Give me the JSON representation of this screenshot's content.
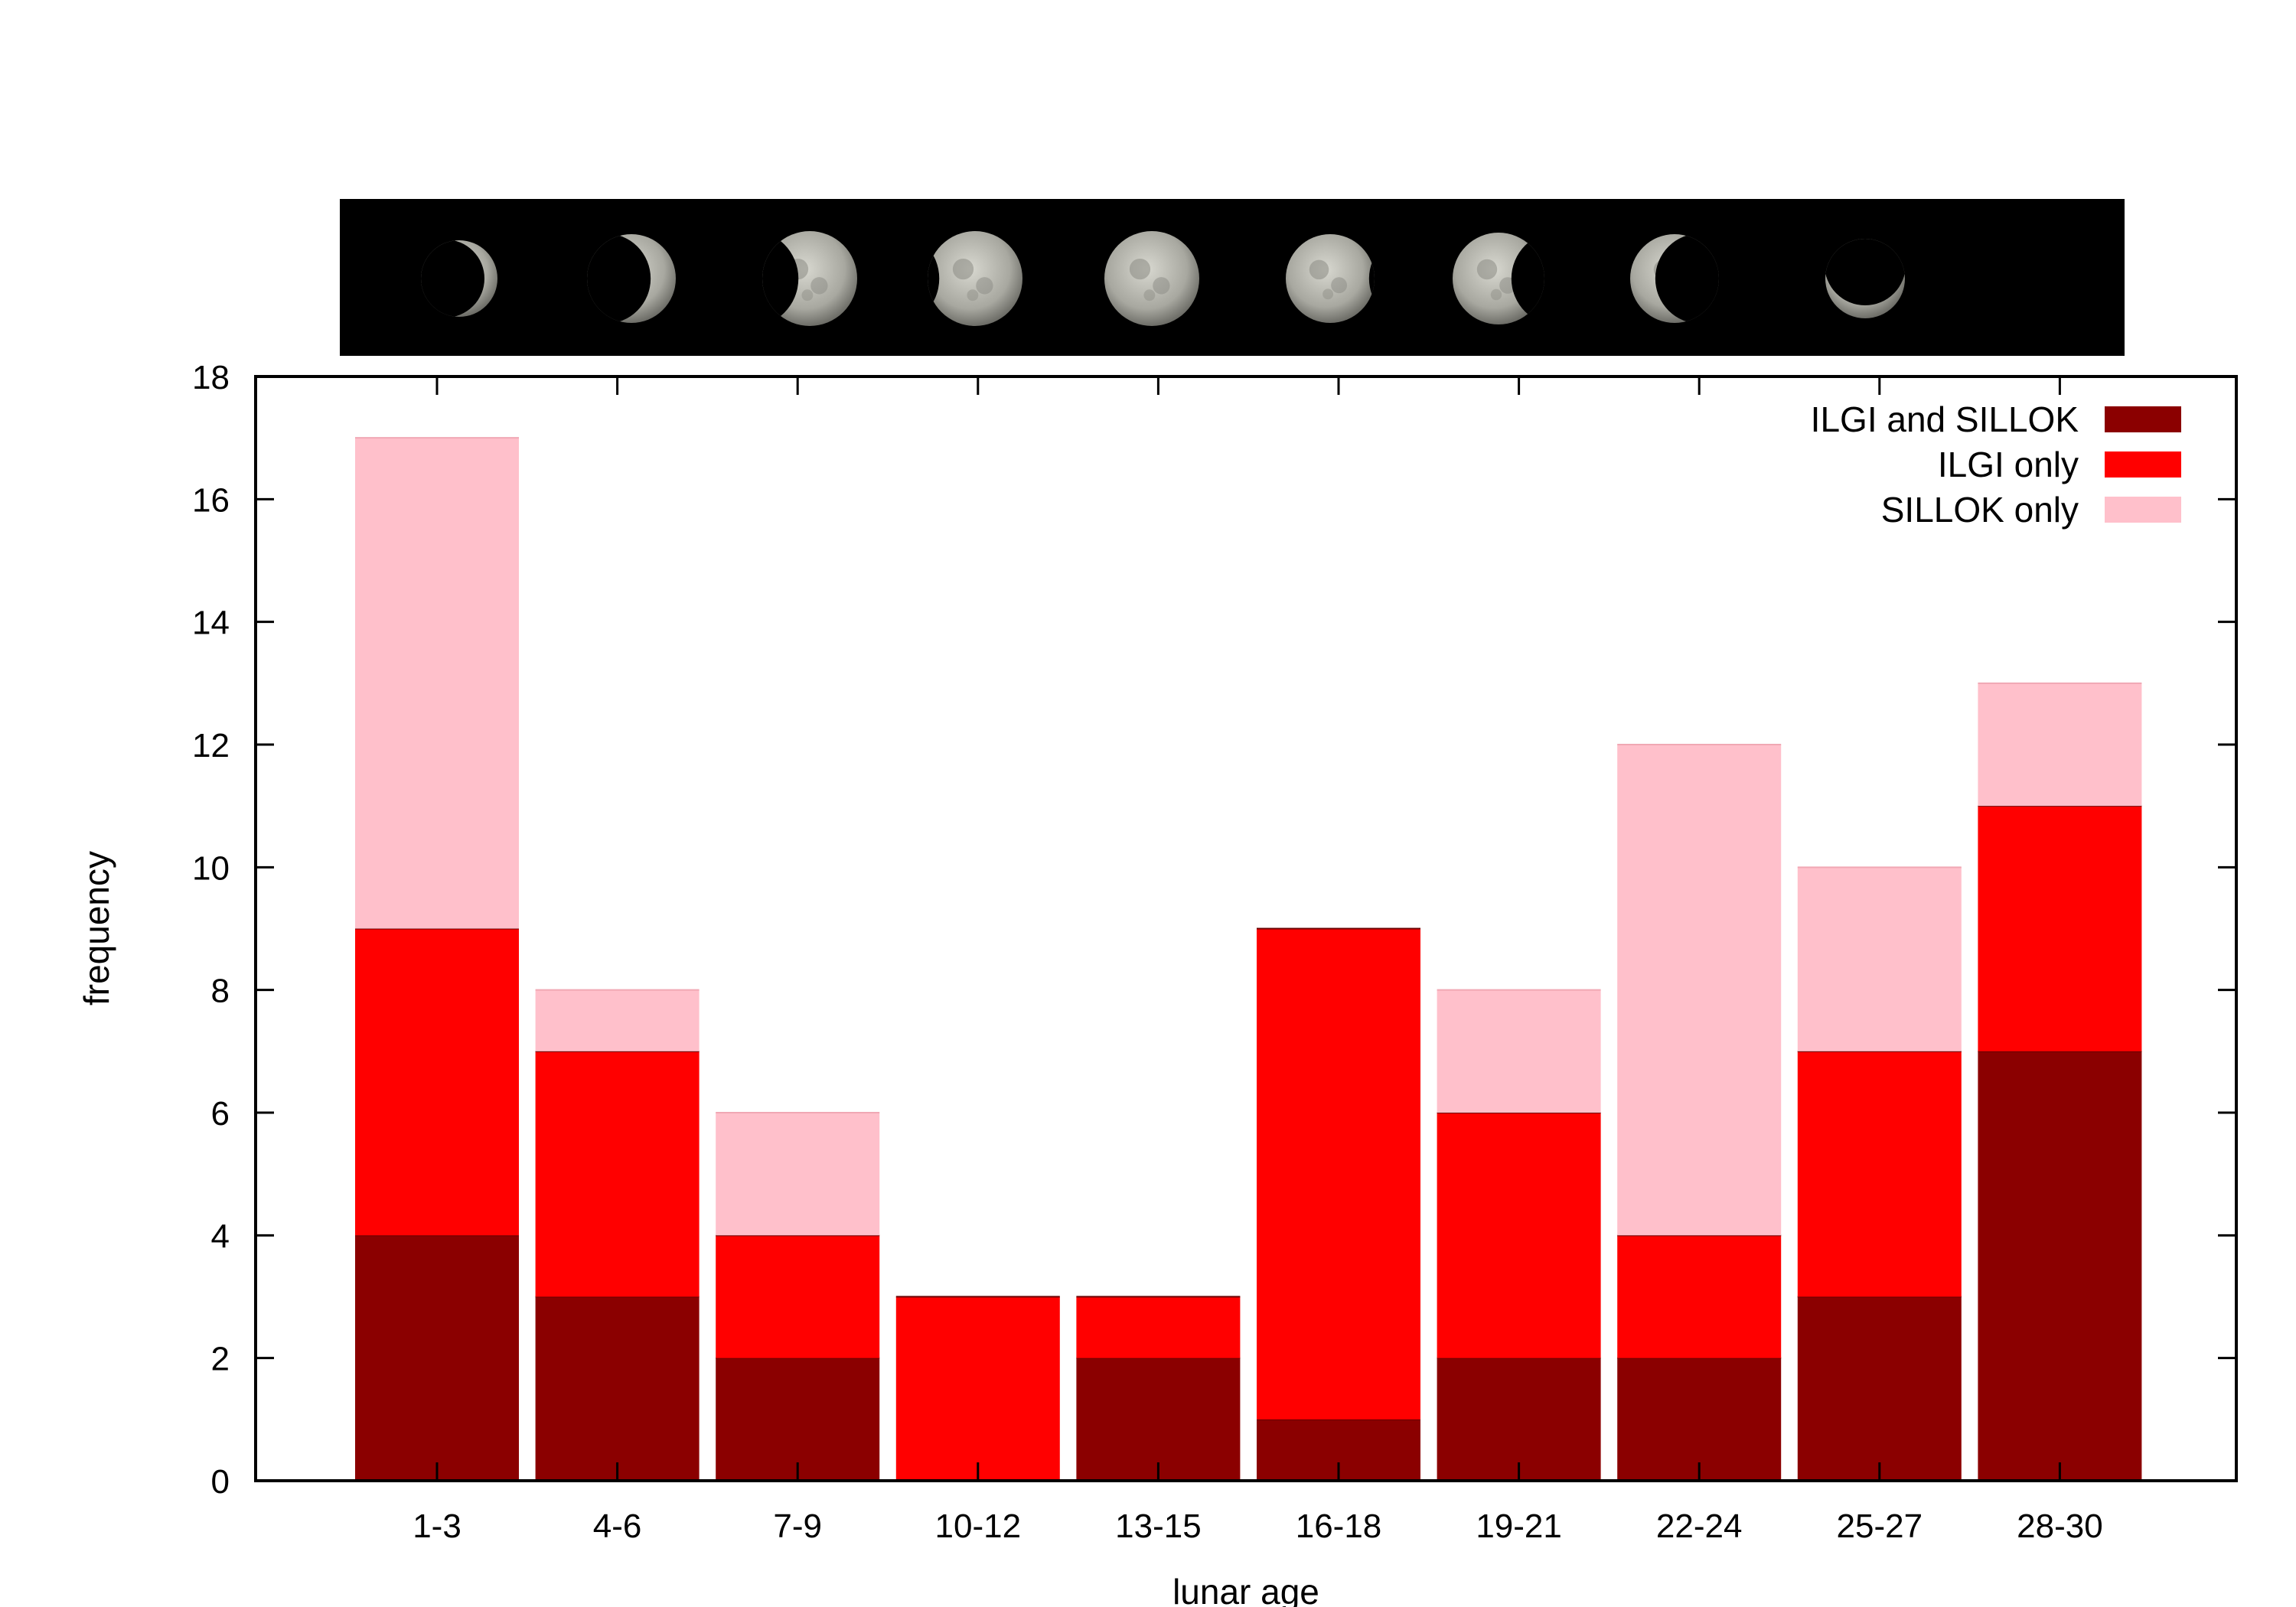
{
  "chart_data": {
    "type": "bar",
    "stacked": true,
    "title": "",
    "xlabel": "lunar age",
    "ylabel": "frequency",
    "ylim": [
      0,
      18
    ],
    "yticks": [
      0,
      2,
      4,
      6,
      8,
      10,
      12,
      14,
      16,
      18
    ],
    "categories": [
      "1-3",
      "4-6",
      "7-9",
      "10-12",
      "13-15",
      "16-18",
      "19-21",
      "22-24",
      "25-27",
      "28-30"
    ],
    "series": [
      {
        "name": "ILGI and SILLOK",
        "color": "#8b0000",
        "values": [
          4,
          3,
          2,
          0,
          2,
          1,
          2,
          2,
          3,
          7
        ]
      },
      {
        "name": "ILGI only",
        "color": "#ff0000",
        "values": [
          5,
          4,
          2,
          3,
          1,
          8,
          4,
          2,
          4,
          4
        ]
      },
      {
        "name": "SILLOK only",
        "color": "#ffc0cb",
        "values": [
          8,
          1,
          2,
          0,
          0,
          0,
          2,
          8,
          3,
          2
        ]
      }
    ],
    "legend_position": "top-right",
    "grid": false,
    "header_image": {
      "description": "moon phases from waxing crescent through full to waning crescent",
      "phases": [
        "waxing-crescent",
        "waxing-crescent",
        "first-quarter",
        "waxing-gibbous",
        "full",
        "waning-gibbous",
        "last-quarter",
        "waning-crescent",
        "waning-crescent"
      ]
    }
  }
}
